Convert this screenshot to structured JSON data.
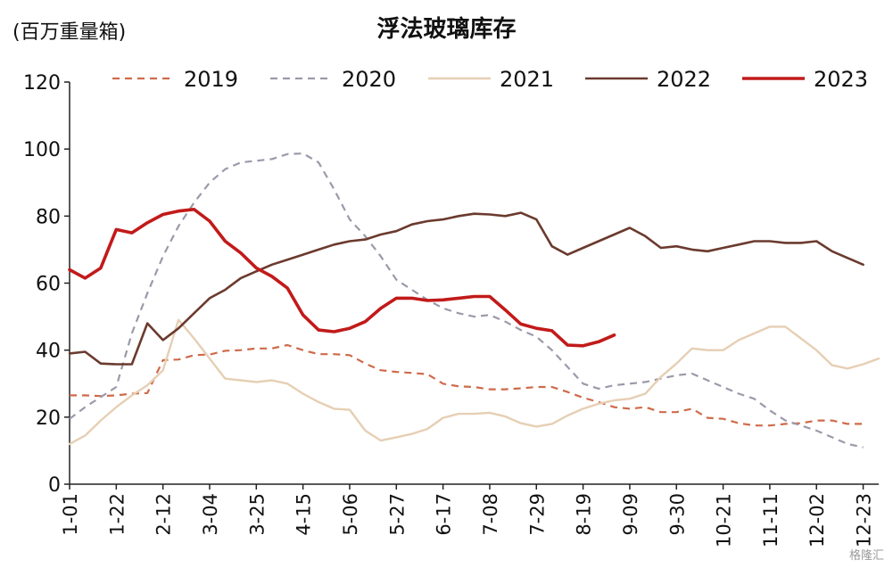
{
  "unit_label": "(百万重量箱)",
  "watermark": "格隆汇",
  "chart_data": {
    "type": "line",
    "title": "浮法玻璃库存",
    "ylim": [
      0,
      120
    ],
    "yticks": [
      0,
      20,
      40,
      60,
      80,
      100,
      120
    ],
    "xlim": [
      1,
      53
    ],
    "xticks": [
      {
        "w": 1,
        "label": "1-01"
      },
      {
        "w": 4,
        "label": "1-22"
      },
      {
        "w": 7,
        "label": "2-12"
      },
      {
        "w": 10,
        "label": "3-04"
      },
      {
        "w": 13,
        "label": "3-25"
      },
      {
        "w": 16,
        "label": "4-15"
      },
      {
        "w": 19,
        "label": "5-06"
      },
      {
        "w": 22,
        "label": "5-27"
      },
      {
        "w": 25,
        "label": "6-17"
      },
      {
        "w": 28,
        "label": "7-08"
      },
      {
        "w": 31,
        "label": "7-29"
      },
      {
        "w": 34,
        "label": "8-19"
      },
      {
        "w": 37,
        "label": "9-09"
      },
      {
        "w": 40,
        "label": "9-30"
      },
      {
        "w": 43,
        "label": "10-21"
      },
      {
        "w": 46,
        "label": "11-11"
      },
      {
        "w": 49,
        "label": "12-02"
      },
      {
        "w": 52,
        "label": "12-23"
      }
    ],
    "legend_placement": "top",
    "series": [
      {
        "name": "2019",
        "color": "#cf6a4a",
        "style": "dashed",
        "width": 2.2,
        "values": [
          26.5,
          26.5,
          26.3,
          26.5,
          27,
          27.2,
          37,
          37.2,
          38.5,
          38.7,
          39.8,
          40,
          40.5,
          40.5,
          41.5,
          40,
          38.8,
          38.8,
          38.5,
          36,
          34,
          33.5,
          33.2,
          32.8,
          30,
          29.2,
          29,
          28.3,
          28.3,
          28.6,
          29,
          29,
          27.5,
          25.8,
          24.5,
          23,
          22.5,
          23,
          21.5,
          21.5,
          22.5,
          19.8,
          19.5,
          18.2,
          17.5,
          17.5,
          18,
          18.2,
          19,
          19,
          18,
          18
        ]
      },
      {
        "name": "2020",
        "color": "#9a9aaa",
        "style": "dashed",
        "width": 2.2,
        "values": [
          19.5,
          23,
          26,
          29,
          45,
          57,
          68,
          77,
          84,
          90,
          94,
          96,
          96.5,
          97,
          98.5,
          98.7,
          96,
          88,
          79,
          74,
          68,
          61,
          58,
          55,
          52.5,
          51,
          50,
          50.5,
          48.5,
          46,
          44,
          40,
          35,
          30,
          28.5,
          29.5,
          30,
          30.5,
          31.5,
          32.5,
          33,
          31,
          29,
          27,
          25.5,
          22,
          19,
          17.5,
          16,
          14,
          12,
          11
        ]
      },
      {
        "name": "2021",
        "color": "#e6cfb4",
        "style": "solid",
        "width": 2.4,
        "values": [
          12,
          14.5,
          19,
          23,
          26.5,
          29.5,
          34,
          49,
          43.5,
          37.5,
          31.5,
          31,
          30.5,
          31,
          30,
          27,
          24.5,
          22.5,
          22.2,
          16,
          13,
          14,
          15,
          16.5,
          19.8,
          21,
          21,
          21.3,
          20.2,
          18.2,
          17.2,
          18,
          20.5,
          22.5,
          24,
          25,
          25.5,
          27,
          32,
          36,
          40.5,
          40,
          40,
          43,
          45,
          47,
          47,
          43.5,
          40,
          35.5,
          34.5,
          35.8,
          37.5
        ]
      },
      {
        "name": "2022",
        "color": "#6b3a2e",
        "style": "solid",
        "width": 2.6,
        "values": [
          39,
          39.5,
          36,
          35.8,
          35.8,
          48,
          43,
          46.5,
          51,
          55.5,
          58,
          61.5,
          63.5,
          65.5,
          67,
          68.5,
          70,
          71.5,
          72.5,
          73,
          74.5,
          75.5,
          77.5,
          78.5,
          79,
          80,
          80.7,
          80.5,
          80,
          81,
          79,
          71,
          68.5,
          70.5,
          72.5,
          74.5,
          76.5,
          74,
          70.5,
          71,
          70,
          69.5,
          70.5,
          71.5,
          72.5,
          72.5,
          72,
          72,
          72.5,
          69.5,
          67.5,
          65.5
        ]
      },
      {
        "name": "2023",
        "color": "#c21a1a",
        "style": "solid",
        "width": 3.6,
        "values": [
          64,
          61.5,
          64.5,
          76,
          75,
          78,
          80.5,
          81.5,
          82,
          78.5,
          72.5,
          69,
          64.5,
          62,
          58.5,
          50.5,
          46,
          45.5,
          46.5,
          48.5,
          52.5,
          55.5,
          55.5,
          54.8,
          55,
          55.5,
          56,
          56,
          52,
          47.8,
          46.5,
          45.8,
          41.5,
          41.3,
          42.5,
          44.5
        ]
      }
    ]
  }
}
